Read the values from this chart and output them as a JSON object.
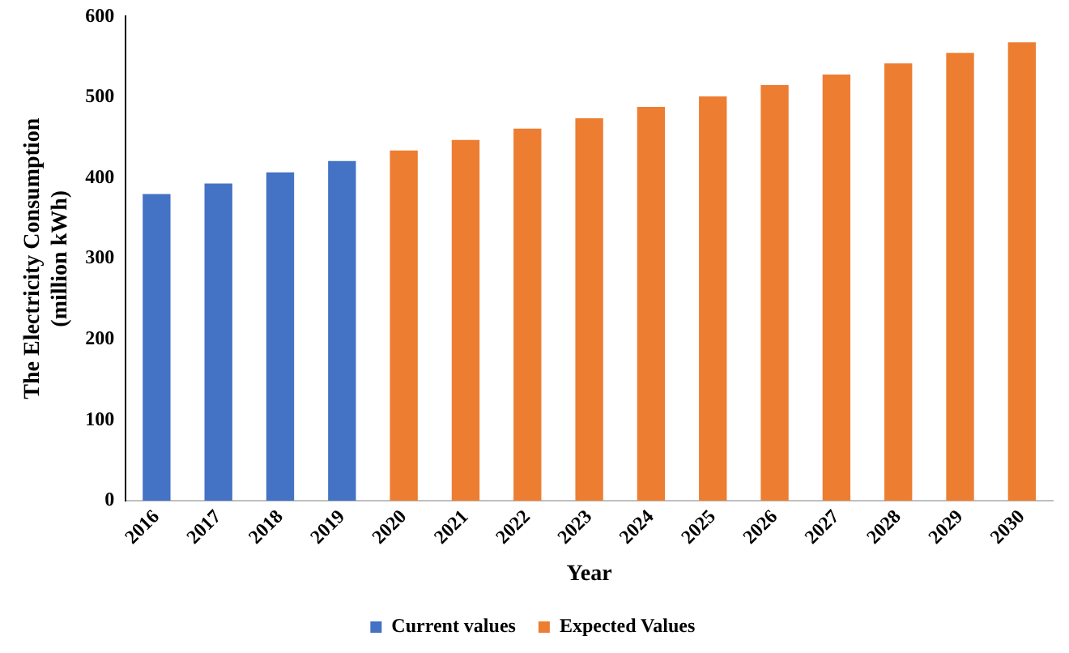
{
  "chart_data": {
    "type": "bar",
    "xlabel": "Year",
    "ylabel": "The Electricity Consumption\n(million kWh)",
    "categories": [
      "2016",
      "2017",
      "2018",
      "2019",
      "2020",
      "2021",
      "2022",
      "2023",
      "2024",
      "2025",
      "2026",
      "2027",
      "2028",
      "2029",
      "2030"
    ],
    "series": [
      {
        "name": "Current values",
        "color": "#4472c4",
        "values": [
          380,
          393,
          407,
          421,
          null,
          null,
          null,
          null,
          null,
          null,
          null,
          null,
          null,
          null,
          null
        ]
      },
      {
        "name": "Expected Values",
        "color": "#ed7d31",
        "values": [
          null,
          null,
          null,
          null,
          434,
          447,
          461,
          474,
          488,
          501,
          515,
          528,
          542,
          555,
          568
        ]
      }
    ],
    "ylim": [
      0,
      600
    ],
    "yticks": [
      0,
      100,
      200,
      300,
      400,
      500,
      600
    ],
    "grid": false,
    "legend": "bottom"
  }
}
